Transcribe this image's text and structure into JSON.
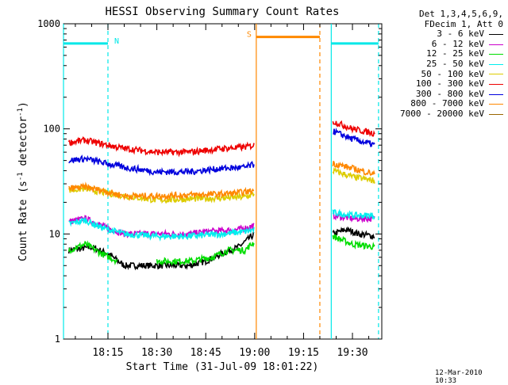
{
  "chart_data": {
    "type": "line",
    "title": "HESSI Observing Summary Count Rates",
    "xlabel": "Start Time (31-Jul-09 18:01:22)",
    "ylabel": "Count Rate (s",
    "ylabel_sup1": "-1",
    "ylabel_mid": " detector",
    "ylabel_sup2": "-1",
    "ylabel_end": ")",
    "y_scale": "log",
    "ylim": [
      1,
      1000
    ],
    "xlim": [
      "18:01:22",
      "19:39:00"
    ],
    "y_ticks": [
      "1",
      "10",
      "100",
      "1000"
    ],
    "x_ticks": [
      "18:15",
      "18:30",
      "18:45",
      "19:00",
      "19:15",
      "19:30"
    ],
    "legend_header": [
      "Det 1,3,4,5,6,9,",
      "FDecim 1, Att 0"
    ],
    "legend_position": "right",
    "series": [
      {
        "name": "3 - 6 keV",
        "color": "#000000",
        "points": [
          [
            "18:03",
            7
          ],
          [
            "18:10",
            7.5
          ],
          [
            "18:15",
            6.5
          ],
          [
            "18:20",
            5
          ],
          [
            "18:30",
            5
          ],
          [
            "18:40",
            5
          ],
          [
            "18:45",
            5.5
          ],
          [
            "18:50",
            6.5
          ],
          [
            "18:55",
            7.5
          ],
          [
            "19:00",
            10
          ],
          [
            "19:24",
            10
          ],
          [
            "19:28",
            11
          ],
          [
            "19:32",
            10
          ],
          [
            "19:37",
            9.5
          ]
        ]
      },
      {
        "name": "6 - 12 keV",
        "color": "#cc00cc",
        "points": [
          [
            "18:03",
            13
          ],
          [
            "18:08",
            14
          ],
          [
            "18:13",
            12
          ],
          [
            "18:20",
            10
          ],
          [
            "18:30",
            10
          ],
          [
            "18:40",
            10
          ],
          [
            "18:45",
            10.5
          ],
          [
            "18:55",
            11
          ],
          [
            "19:00",
            12
          ],
          [
            "19:24",
            15
          ],
          [
            "19:30",
            14
          ],
          [
            "19:37",
            14
          ]
        ]
      },
      {
        "name": "12 - 25 keV",
        "color": "#00dd00",
        "points": [
          [
            "18:03",
            7
          ],
          [
            "18:08",
            8
          ],
          [
            "18:13",
            6.5
          ],
          [
            "18:18",
            5.5
          ],
          [
            "18:30",
            5.5
          ],
          [
            "18:40",
            5.5
          ],
          [
            "18:47",
            6
          ],
          [
            "18:52",
            7
          ],
          [
            "18:57",
            7
          ],
          [
            "19:00",
            8.5
          ],
          [
            "19:24",
            9.5
          ],
          [
            "19:30",
            8
          ],
          [
            "19:37",
            7.5
          ]
        ]
      },
      {
        "name": "25 - 50 keV",
        "color": "#00eeee",
        "points": [
          [
            "18:03",
            12.5
          ],
          [
            "18:08",
            13.5
          ],
          [
            "18:13",
            11.5
          ],
          [
            "18:20",
            10
          ],
          [
            "18:30",
            9.5
          ],
          [
            "18:40",
            9.5
          ],
          [
            "18:50",
            10
          ],
          [
            "18:57",
            10.5
          ],
          [
            "19:00",
            11
          ],
          [
            "19:24",
            16
          ],
          [
            "19:30",
            15
          ],
          [
            "19:37",
            15
          ]
        ]
      },
      {
        "name": "50 - 100 keV",
        "color": "#ddcc00",
        "points": [
          [
            "18:03",
            26
          ],
          [
            "18:08",
            27
          ],
          [
            "18:13",
            25
          ],
          [
            "18:20",
            23
          ],
          [
            "18:30",
            21
          ],
          [
            "18:40",
            21.5
          ],
          [
            "18:50",
            22
          ],
          [
            "18:57",
            22.5
          ],
          [
            "19:00",
            24
          ],
          [
            "19:24",
            40
          ],
          [
            "19:30",
            35
          ],
          [
            "19:37",
            32
          ]
        ]
      },
      {
        "name": "100 - 300 keV",
        "color": "#ee0000",
        "points": [
          [
            "18:03",
            74
          ],
          [
            "18:08",
            78
          ],
          [
            "18:13",
            72
          ],
          [
            "18:20",
            65
          ],
          [
            "18:30",
            60
          ],
          [
            "18:40",
            60
          ],
          [
            "18:50",
            65
          ],
          [
            "18:57",
            67
          ],
          [
            "19:00",
            70
          ],
          [
            "19:24",
            118
          ],
          [
            "19:30",
            100
          ],
          [
            "19:37",
            90
          ]
        ]
      },
      {
        "name": "300 - 800 keV",
        "color": "#0000dd",
        "points": [
          [
            "18:03",
            50
          ],
          [
            "18:08",
            52
          ],
          [
            "18:13",
            48
          ],
          [
            "18:20",
            43
          ],
          [
            "18:30",
            39
          ],
          [
            "18:40",
            39
          ],
          [
            "18:50",
            42
          ],
          [
            "18:57",
            43
          ],
          [
            "19:00",
            46
          ],
          [
            "19:24",
            95
          ],
          [
            "19:30",
            80
          ],
          [
            "19:37",
            70
          ]
        ]
      },
      {
        "name": "800 - 7000 keV",
        "color": "#ff8800",
        "points": [
          [
            "18:03",
            27
          ],
          [
            "18:08",
            28
          ],
          [
            "18:13",
            26
          ],
          [
            "18:20",
            23
          ],
          [
            "18:30",
            23
          ],
          [
            "18:40",
            23.5
          ],
          [
            "18:50",
            24
          ],
          [
            "18:57",
            25
          ],
          [
            "19:00",
            26
          ],
          [
            "19:24",
            47
          ],
          [
            "19:30",
            42
          ],
          [
            "19:37",
            37
          ]
        ]
      },
      {
        "name": "7000 - 20000 keV",
        "color": "#996600",
        "points": []
      }
    ],
    "annotations": [
      {
        "label": "N",
        "color": "#00e8e8",
        "start": "18:01:22",
        "end": "18:15:00",
        "y": 650
      },
      {
        "label": "S",
        "color": "#ff8800",
        "start": "19:00:30",
        "end": "19:20:00",
        "y": 750
      },
      {
        "label": "",
        "color": "#00e8e8",
        "start": "19:23:30",
        "end": "19:38:00",
        "y": 650
      }
    ],
    "annotation_lines": [
      {
        "time": "18:01:22",
        "color": "#00e8e8",
        "style": "solid"
      },
      {
        "time": "18:15:00",
        "color": "#00e8e8",
        "style": "dashed"
      },
      {
        "time": "19:00:30",
        "color": "#ff8800",
        "style": "solid"
      },
      {
        "time": "19:20:00",
        "color": "#ff8800",
        "style": "dashed"
      },
      {
        "time": "19:23:30",
        "color": "#00e8e8",
        "style": "solid"
      },
      {
        "time": "19:38:00",
        "color": "#00e8e8",
        "style": "dashed"
      }
    ]
  },
  "timestamp": "12-Mar-2010 10:33"
}
